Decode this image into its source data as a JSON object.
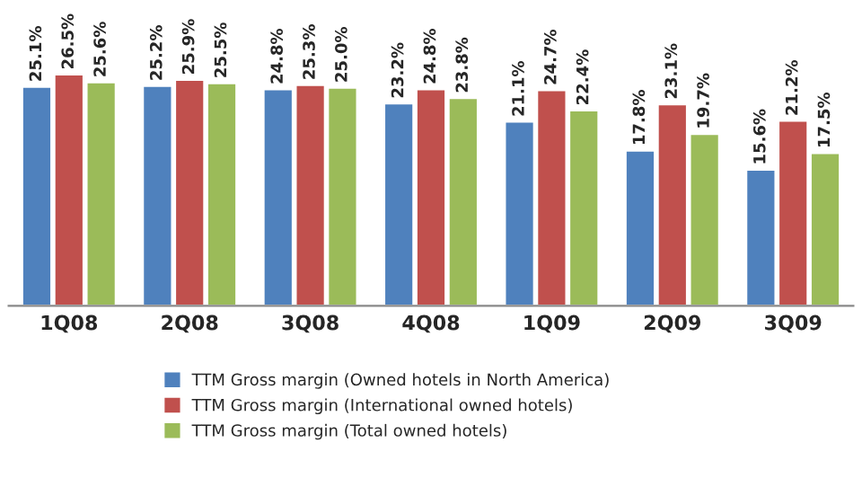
{
  "chart_data": {
    "type": "bar",
    "categories": [
      "1Q08",
      "2Q08",
      "3Q08",
      "4Q08",
      "1Q09",
      "2Q09",
      "3Q09"
    ],
    "series": [
      {
        "name": "TTM Gross margin (Owned hotels in North America)",
        "color": "#4f81bd",
        "values": [
          25.1,
          25.2,
          24.8,
          23.2,
          21.1,
          17.8,
          15.6
        ],
        "value_labels": [
          "25.1%",
          "25.2%",
          "24.8%",
          "23.2%",
          "21.1%",
          "17.8%",
          "15.6%"
        ]
      },
      {
        "name": "TTM Gross margin (International owned hotels)",
        "color": "#c0504d",
        "values": [
          26.5,
          25.9,
          25.3,
          24.8,
          24.7,
          23.1,
          21.2
        ],
        "value_labels": [
          "26.5%",
          "25.9%",
          "25.3%",
          "24.8%",
          "24.7%",
          "23.1%",
          "21.2%"
        ]
      },
      {
        "name": "TTM Gross margin (Total owned hotels)",
        "color": "#9bbb59",
        "values": [
          25.6,
          25.5,
          25.0,
          23.8,
          22.4,
          19.7,
          17.5
        ],
        "value_labels": [
          "25.6%",
          "25.5%",
          "25.0%",
          "23.8%",
          "22.4%",
          "19.7%",
          "17.5%"
        ]
      }
    ],
    "tick_labels": "x",
    "legend": "bottom"
  }
}
